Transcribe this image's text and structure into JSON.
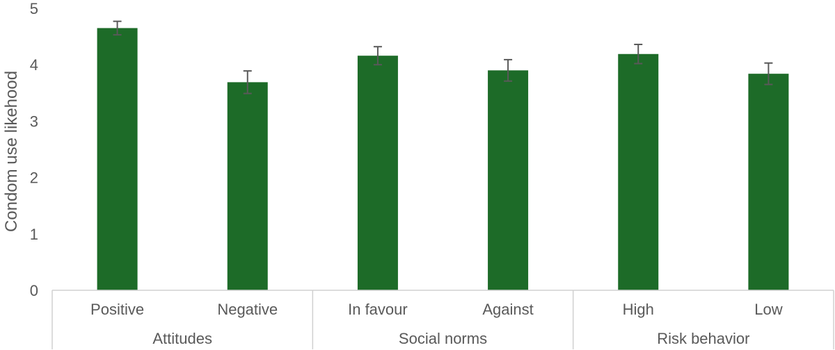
{
  "chart_data": {
    "type": "bar",
    "title": "",
    "xlabel": "",
    "ylabel": "Condom use likehood",
    "ylim": [
      0,
      5
    ],
    "yticks": [
      "0",
      "1",
      "2",
      "3",
      "4",
      "5"
    ],
    "grid": false,
    "categories": [
      "Positive",
      "Negative",
      "In favour",
      "Against",
      "High",
      "Low"
    ],
    "groups": [
      {
        "label": "Attitudes",
        "span": 2
      },
      {
        "label": "Social norms",
        "span": 2
      },
      {
        "label": "Risk behavior",
        "span": 2
      }
    ],
    "values": [
      4.65,
      3.69,
      4.16,
      3.9,
      4.19,
      3.84
    ],
    "error_bars": [
      0.12,
      0.2,
      0.16,
      0.19,
      0.17,
      0.19
    ],
    "bar_color": "#1d6b28",
    "error_color": "#595959",
    "axis_color": "#d0d0d0"
  }
}
